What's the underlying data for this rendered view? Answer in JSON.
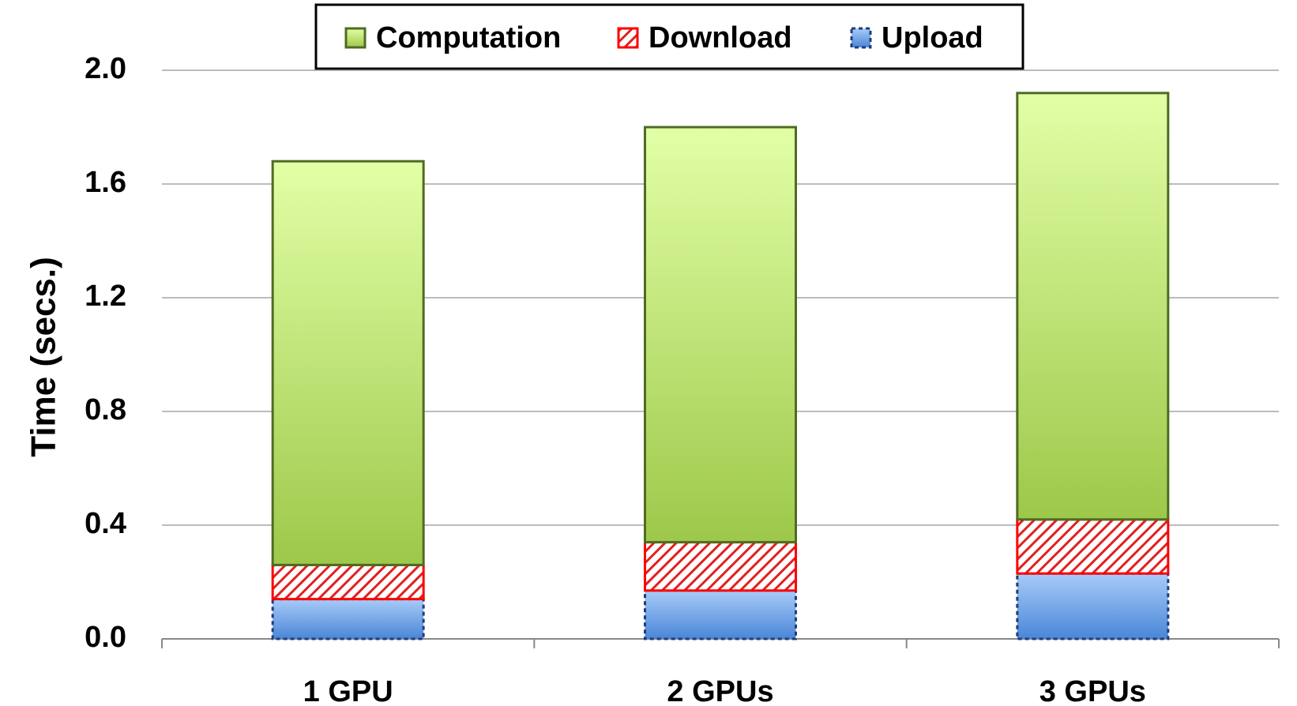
{
  "chart_data": {
    "type": "stacked_bar",
    "ylabel": "Time (secs.)",
    "categories": [
      "1 GPU",
      "2 GPUs",
      "3 GPUs"
    ],
    "series": [
      {
        "name": "Computation",
        "color": "#9dc84a",
        "values": [
          1.42,
          1.46,
          1.5
        ]
      },
      {
        "name": "Download",
        "color": "#ff0000",
        "values": [
          0.12,
          0.17,
          0.19
        ]
      },
      {
        "name": "Upload",
        "color": "#4a86d8",
        "values": [
          0.14,
          0.17,
          0.23
        ]
      }
    ],
    "ylim": [
      0,
      2.0
    ],
    "yticks": [
      {
        "value": 0,
        "label": "0.0"
      },
      0.4,
      0.8,
      1.2,
      1.6,
      {
        "value": 2.0,
        "label": "2.0"
      }
    ],
    "grid": true,
    "legend": "top"
  }
}
